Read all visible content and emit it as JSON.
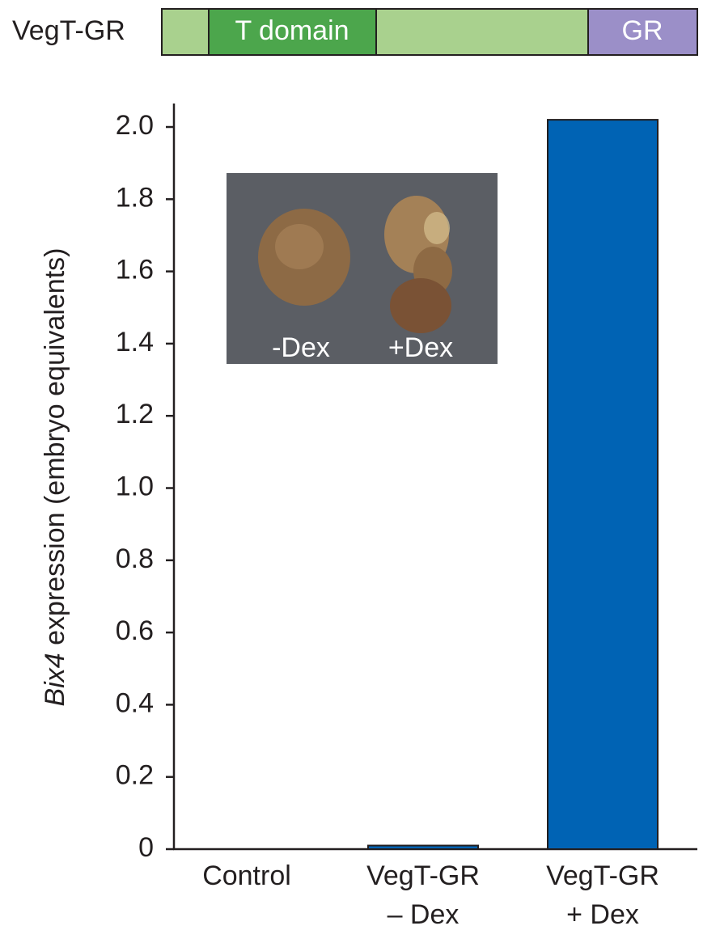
{
  "construct": {
    "label": "VegT-GR",
    "domains": [
      "T domain",
      "GR"
    ]
  },
  "chart_data": {
    "type": "bar",
    "y_label_italic": "Bix4",
    "y_label": " expression (embryo equivalents)",
    "categories": [
      [
        "Control"
      ],
      [
        "VegT-GR",
        "– Dex"
      ],
      [
        "VegT-GR",
        "+ Dex"
      ]
    ],
    "values": [
      0,
      0.01,
      2.02
    ],
    "color": "#0063b4",
    "ylim": [
      0,
      2.065
    ],
    "yticks": [
      0,
      0.2,
      0.4,
      0.6,
      0.8,
      {
        "value": 1,
        "label": "1.0"
      },
      1.2,
      1.4,
      1.6,
      1.8,
      {
        "value": 2,
        "label": "2.0"
      }
    ],
    "inset": {
      "labels": [
        "-Dex",
        "+Dex"
      ]
    }
  }
}
